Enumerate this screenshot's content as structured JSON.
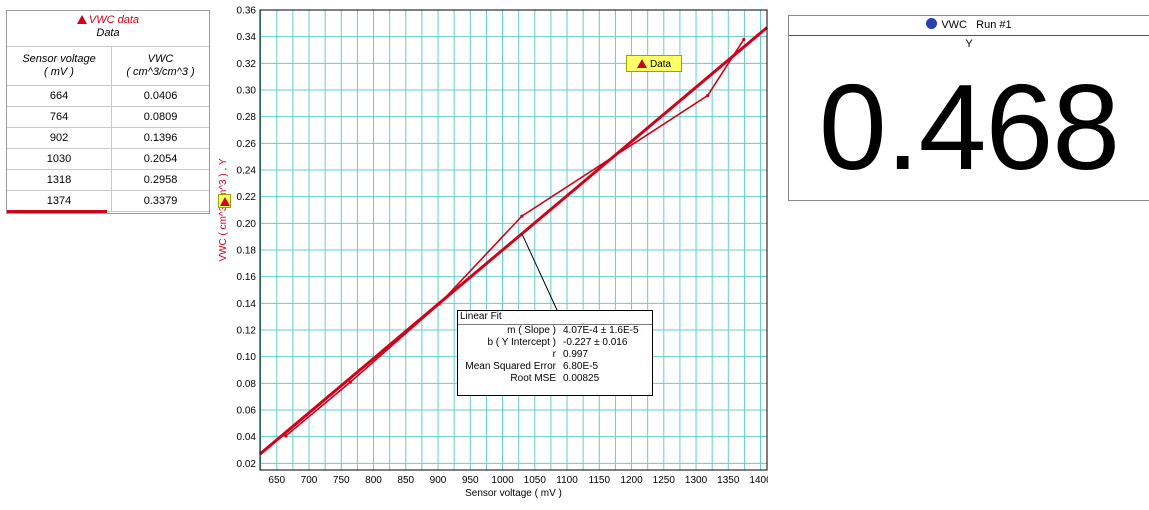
{
  "table": {
    "dataset_label": "VWC data",
    "run_label": "Data",
    "columns": [
      {
        "name": "Sensor voltage",
        "unit": "( mV )"
      },
      {
        "name": "VWC",
        "unit": "( cm^3/cm^3 )"
      }
    ],
    "rows": [
      [
        "664",
        "0.0406"
      ],
      [
        "764",
        "0.0809"
      ],
      [
        "902",
        "0.1396"
      ],
      [
        "1030",
        "0.2054"
      ],
      [
        "1318",
        "0.2958"
      ],
      [
        "1374",
        "0.3379"
      ]
    ]
  },
  "graph": {
    "legend_label": "Data",
    "fit": {
      "title": "Linear Fit",
      "rows": [
        {
          "label": "m ( Slope )",
          "value": "4.07E-4 ± 1.6E-5"
        },
        {
          "label": "b ( Y Intercept )",
          "value": "-0.227 ±  0.016"
        },
        {
          "label": "r",
          "value": "0.997"
        },
        {
          "label": "Mean Squared Error",
          "value": "6.80E-5"
        },
        {
          "label": "Root MSE",
          "value": "0.00825"
        }
      ]
    }
  },
  "chart_data": {
    "type": "line",
    "xlabel": "Sensor voltage ( mV )",
    "ylabel": "VWC ( cm^3/cm^3 ) , Y",
    "xlim": [
      624,
      1410
    ],
    "ylim": [
      0.015,
      0.36
    ],
    "x_ticks": [
      "650",
      "700",
      "750",
      "800",
      "850",
      "900",
      "950",
      "1000",
      "1050",
      "1100",
      "1150",
      "1200",
      "1250",
      "1300",
      "1350",
      "1400"
    ],
    "y_ticks": [
      "0.02",
      "0.04",
      "0.06",
      "0.08",
      "0.10",
      "0.12",
      "0.14",
      "0.16",
      "0.18",
      "0.20",
      "0.22",
      "0.24",
      "0.26",
      "0.28",
      "0.30",
      "0.32",
      "0.34",
      "0.36"
    ],
    "grid": true,
    "series": [
      {
        "name": "Data",
        "x": [
          664,
          764,
          902,
          1030,
          1318,
          1374
        ],
        "y": [
          0.0406,
          0.0809,
          0.1396,
          0.2054,
          0.2958,
          0.3379
        ]
      }
    ],
    "fit_line": {
      "slope": 0.000407,
      "intercept": -0.227
    },
    "colors": {
      "data": "#d0021b",
      "grid": "#66cccc",
      "annotation_fill": "#ffff66"
    }
  },
  "meter": {
    "series_label": "VWC",
    "run_label": "Run #1",
    "variable": "Y",
    "value": "0.468",
    "dot_color": "#2a3fb0"
  }
}
